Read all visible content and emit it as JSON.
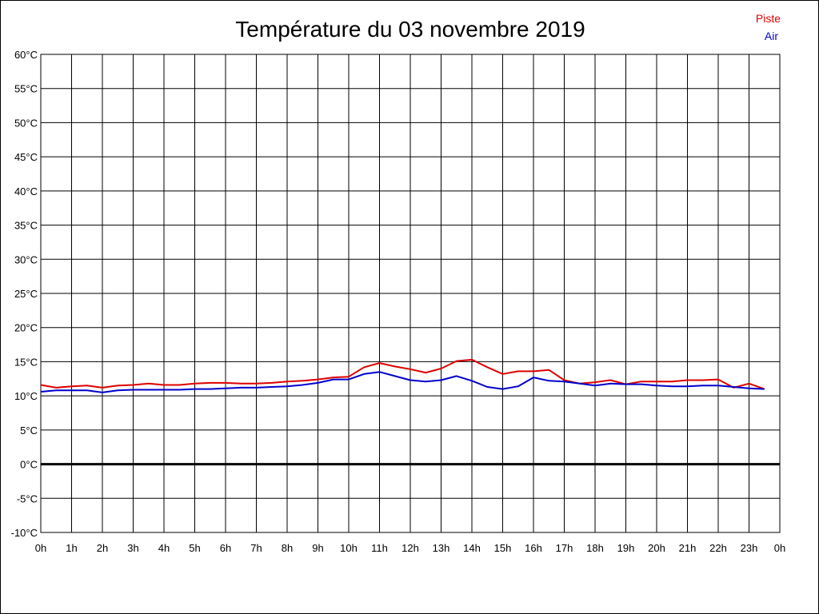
{
  "chart_data": {
    "type": "line",
    "title": "Température du 03 novembre 2019",
    "xlabel": "",
    "ylabel": "",
    "xlim": [
      0,
      24
    ],
    "ylim": [
      -10,
      60
    ],
    "grid": true,
    "legend_position": "top-right",
    "x_ticks": [
      "0h",
      "1h",
      "2h",
      "3h",
      "4h",
      "5h",
      "6h",
      "7h",
      "8h",
      "9h",
      "10h",
      "11h",
      "12h",
      "13h",
      "14h",
      "15h",
      "16h",
      "17h",
      "18h",
      "19h",
      "20h",
      "21h",
      "22h",
      "23h",
      "0h"
    ],
    "y_ticks": [
      "60°C",
      "55°C",
      "50°C",
      "45°C",
      "40°C",
      "35°C",
      "30°C",
      "25°C",
      "20°C",
      "15°C",
      "10°C",
      "5°C",
      "0°C",
      "-5°C",
      "-10°C"
    ],
    "x": [
      0,
      0.5,
      1,
      1.5,
      2,
      2.5,
      3,
      3.5,
      4,
      4.5,
      5,
      5.5,
      6,
      6.5,
      7,
      7.5,
      8,
      8.5,
      9,
      9.5,
      10,
      10.5,
      11,
      11.5,
      12,
      12.5,
      13,
      13.5,
      14,
      14.5,
      15,
      15.5,
      16,
      16.5,
      17,
      17.5,
      18,
      18.5,
      19,
      19.5,
      20,
      20.5,
      21,
      21.5,
      22,
      22.5,
      23,
      23.5
    ],
    "series": [
      {
        "name": "Piste",
        "color": "#dd0000",
        "values": [
          11.6,
          11.2,
          11.4,
          11.5,
          11.2,
          11.5,
          11.6,
          11.8,
          11.6,
          11.6,
          11.8,
          11.9,
          11.9,
          11.8,
          11.8,
          11.9,
          12.1,
          12.2,
          12.4,
          12.7,
          12.8,
          14.2,
          14.8,
          14.3,
          13.9,
          13.4,
          14.0,
          15.1,
          15.3,
          14.2,
          13.2,
          13.6,
          13.6,
          13.8,
          12.3,
          11.8,
          12.0,
          12.3,
          11.7,
          12.1,
          12.1,
          12.1,
          12.3,
          12.3,
          12.4,
          11.2,
          11.8,
          11.0
        ],
        "values_note": ""
      },
      {
        "name": "Air",
        "color": "#0000cc",
        "values": [
          10.6,
          10.8,
          10.8,
          10.8,
          10.5,
          10.8,
          10.9,
          10.9,
          10.9,
          10.9,
          11.0,
          11.0,
          11.1,
          11.2,
          11.2,
          11.3,
          11.4,
          11.6,
          11.9,
          12.4,
          12.4,
          13.2,
          13.5,
          12.9,
          12.3,
          12.1,
          12.3,
          12.9,
          12.2,
          11.3,
          11.0,
          11.4,
          12.7,
          12.2,
          12.1,
          11.8,
          11.5,
          11.8,
          11.7,
          11.7,
          11.5,
          11.4,
          11.4,
          11.5,
          11.5,
          11.3,
          11.1,
          11.0
        ],
        "values_note": ""
      }
    ]
  }
}
